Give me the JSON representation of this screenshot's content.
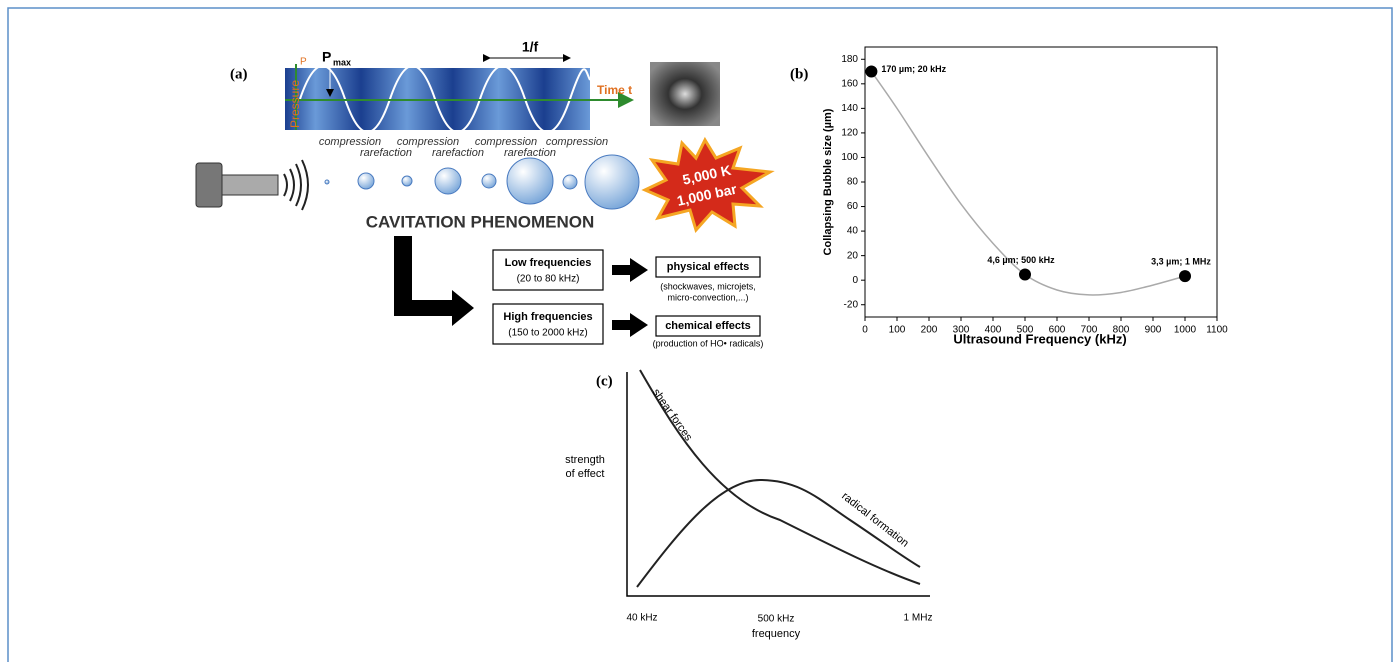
{
  "panel_a": {
    "label": "(a)",
    "pressure_axis": "Pressure",
    "pressure_symbol": "P",
    "amplitude_symbol": "P",
    "amplitude_subscript": "max",
    "period": "1/f",
    "time_axis": "Time t",
    "compression": [
      "compression",
      "compression",
      "compression",
      "compression"
    ],
    "rarefaction": [
      "rarefaction",
      "rarefaction",
      "rarefaction"
    ],
    "hotspot": [
      "5,000 K",
      "1,000 bar"
    ],
    "title": "CAVITATION PHENOMENON",
    "low": {
      "label": "Low frequencies",
      "range": "(20 to 80 kHz)",
      "effect": "physical effects",
      "details": [
        "(shockwaves, microjets,",
        "micro-convection,...)"
      ]
    },
    "high": {
      "label": "High frequencies",
      "range": "(150 to 2000 kHz)",
      "effect": "chemical effects",
      "details": [
        "(production of HO• radicals)"
      ]
    }
  },
  "chart_data": {
    "type": "scatter",
    "panel_label": "(b)",
    "x_label": "Ultrasound Frequency (kHz)",
    "y_label": "Collapsing Bubble size (µm)",
    "x": [
      20,
      500,
      1000
    ],
    "values": [
      170,
      4.6,
      3.3
    ],
    "value_labels": [
      "170 µm;  20 kHz",
      "4,6 µm; 500 kHz",
      "3,3 µm; 1 MHz"
    ],
    "color": "#000000",
    "curve": {
      "x": [
        20,
        100,
        200,
        300,
        400,
        500,
        600,
        700,
        800,
        900,
        1000
      ],
      "values": [
        170,
        140,
        100,
        62,
        30,
        4.6,
        -8,
        -12,
        -10,
        -4,
        3.3
      ],
      "color": "#aaaaaa"
    },
    "xlim": [
      0,
      1100
    ],
    "xticks": [
      0,
      100,
      200,
      300,
      400,
      500,
      600,
      700,
      800,
      900,
      1000,
      1100
    ],
    "ylim": [
      -30,
      190
    ],
    "yticks": [
      -20,
      0,
      20,
      40,
      60,
      80,
      100,
      120,
      140,
      160,
      180
    ]
  },
  "panel_c": {
    "label": "(c)",
    "y_label": [
      "strength",
      "of effect"
    ],
    "x_label": "frequency",
    "x_ticks": [
      "40 kHz",
      "500 kHz",
      "1 MHz"
    ],
    "curves": [
      "shear forces",
      "radical formation"
    ]
  }
}
